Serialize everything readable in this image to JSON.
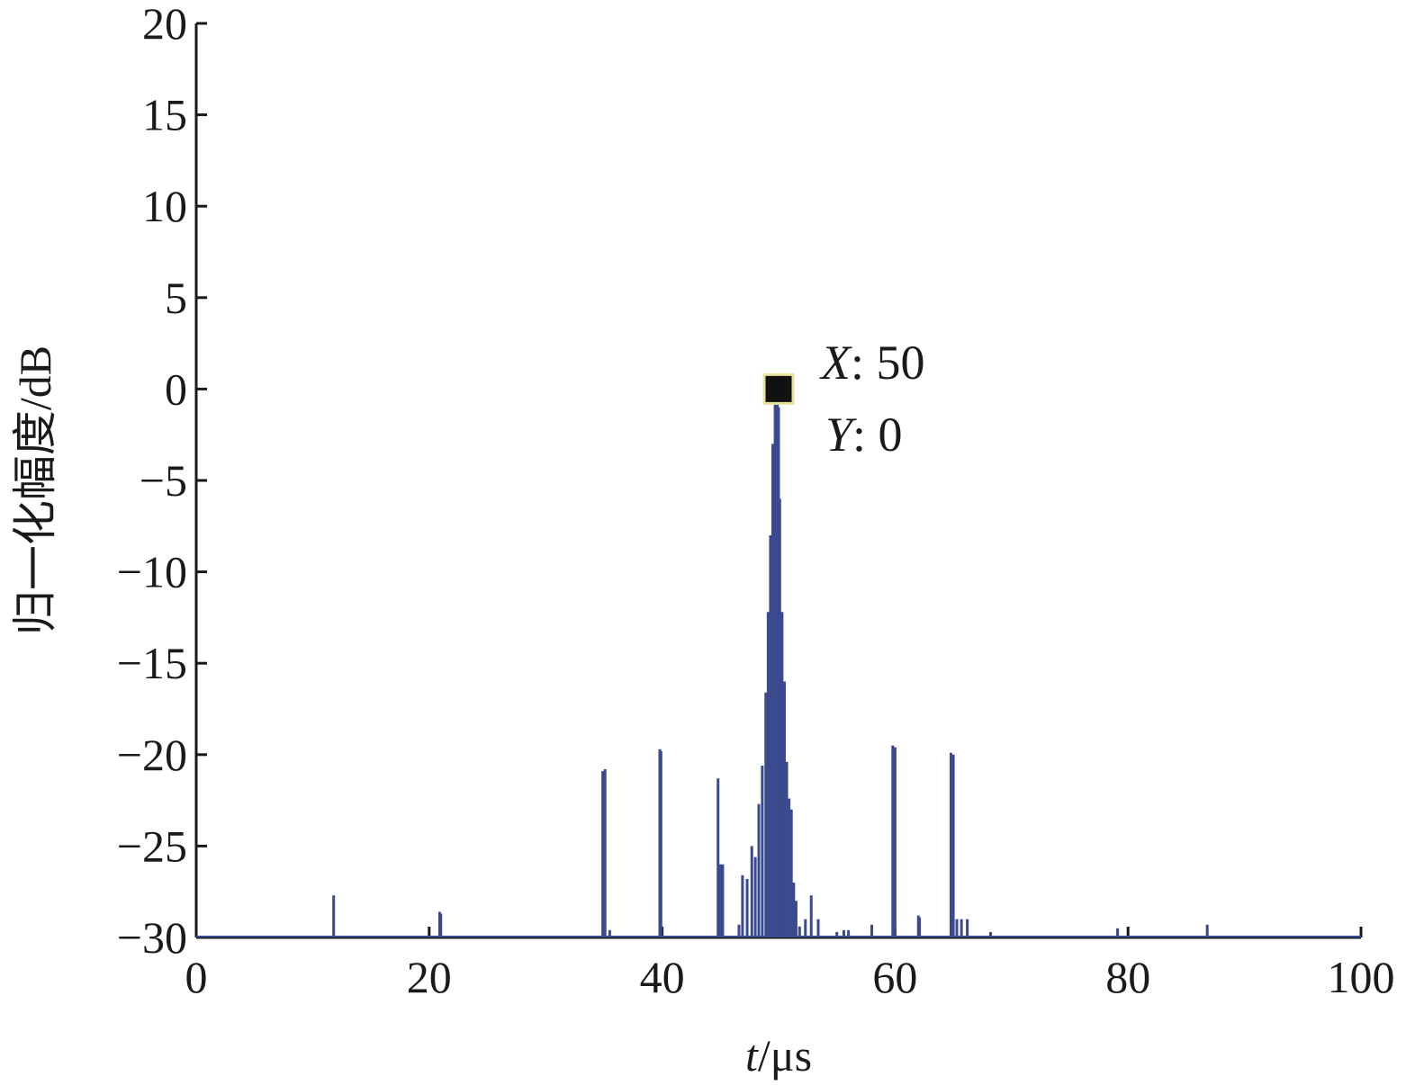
{
  "chart_data": {
    "type": "line",
    "title": "",
    "xlabel_italic": "t",
    "xlabel_rest": "/μs",
    "ylabel": "归一化幅度/dB",
    "xlim": [
      0,
      100
    ],
    "ylim": [
      -30,
      20
    ],
    "grid": false,
    "x_ticks": [
      "0",
      "20",
      "40",
      "60",
      "80",
      "100"
    ],
    "y_ticks": [
      "20",
      "15",
      "10",
      "5",
      "0",
      "−5",
      "−10",
      "−15",
      "−20",
      "−25",
      "−30"
    ],
    "x_tick_values": [
      0,
      20,
      40,
      60,
      80,
      100
    ],
    "y_tick_values": [
      20,
      15,
      10,
      5,
      0,
      -5,
      -10,
      -15,
      -20,
      -25,
      -30
    ],
    "series": [
      {
        "color": "#3b4a8f",
        "x": [
          11.8,
          20.9,
          21.0,
          34.9,
          35.1,
          35.5,
          39.8,
          39.9,
          44.8,
          45.0,
          45.2,
          46.6,
          46.9,
          47.3,
          47.7,
          48.0,
          48.3,
          48.6,
          48.9,
          49.1,
          49.3,
          49.5,
          49.7,
          49.9,
          50.0,
          50.1,
          50.3,
          50.5,
          50.7,
          50.9,
          51.1,
          51.3,
          51.5,
          51.8,
          52.3,
          52.8,
          53.4,
          55.0,
          55.6,
          56.0,
          58.0,
          59.8,
          60.0,
          62.0,
          62.1,
          64.8,
          65.0,
          65.3,
          65.7,
          66.2,
          68.2,
          79.1,
          86.8
        ],
        "y": [
          -27.7,
          -28.6,
          -28.7,
          -20.9,
          -20.8,
          -29.6,
          -19.7,
          -19.8,
          -21.3,
          -26.0,
          -26.0,
          -29.3,
          -26.6,
          -26.8,
          -25.0,
          -25.6,
          -22.7,
          -20.6,
          -16.6,
          -12.2,
          -8.0,
          -3.0,
          -0.8,
          0.0,
          -1.0,
          -6.0,
          -12.2,
          -16.0,
          -20.4,
          -22.4,
          -23.0,
          -27.0,
          -28.0,
          -29.4,
          -29.0,
          -27.7,
          -29.0,
          -29.7,
          -29.6,
          -29.6,
          -29.3,
          -19.5,
          -19.6,
          -28.8,
          -28.9,
          -19.9,
          -20.0,
          -29.0,
          -29.0,
          -29.0,
          -29.7,
          -29.5,
          -29.3
        ]
      }
    ],
    "marker": {
      "x": 50,
      "y": 0,
      "color": "#111111",
      "edge": "#e8e2a0"
    },
    "annotations": {
      "x_label": "X",
      "x_value": ": 50",
      "y_label": "Y",
      "y_value": ": 0"
    }
  }
}
